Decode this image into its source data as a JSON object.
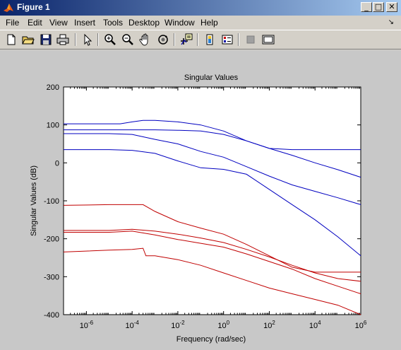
{
  "window": {
    "title": "Figure 1",
    "buttons": {
      "minimize": "_",
      "maximize": "□",
      "close": "✕"
    }
  },
  "menu": [
    {
      "label": "File"
    },
    {
      "label": "Edit"
    },
    {
      "label": "View"
    },
    {
      "label": "Insert"
    },
    {
      "label": "Tools"
    },
    {
      "label": "Desktop"
    },
    {
      "label": "Window"
    },
    {
      "label": "Help"
    }
  ],
  "menu_arrow": "↘",
  "toolbar": [
    {
      "icon": "new-figure-icon"
    },
    {
      "icon": "open-folder-icon"
    },
    {
      "icon": "save-icon"
    },
    {
      "icon": "print-icon"
    },
    {
      "icon": "pointer-arrow-icon"
    },
    {
      "icon": "zoom-in-icon"
    },
    {
      "icon": "zoom-out-icon"
    },
    {
      "icon": "pan-hand-icon"
    },
    {
      "icon": "rotate-3d-icon"
    },
    {
      "icon": "data-cursor-icon"
    },
    {
      "icon": "colorbar-icon"
    },
    {
      "icon": "legend-icon"
    },
    {
      "icon": "hide-plot-tools-icon"
    },
    {
      "icon": "show-plot-tools-icon"
    }
  ],
  "chart_data": {
    "type": "line",
    "title": "Singular Values",
    "xlabel": "Frequency (rad/sec)",
    "ylabel": "Singular Values (dB)",
    "xscale": "log",
    "xlim": [
      1e-07,
      1000000.0
    ],
    "ylim": [
      -400,
      200
    ],
    "xticks": [
      {
        "base": "10",
        "exp": "-6"
      },
      {
        "base": "10",
        "exp": "-4"
      },
      {
        "base": "10",
        "exp": "-2"
      },
      {
        "base": "10",
        "exp": "0"
      },
      {
        "base": "10",
        "exp": "2"
      },
      {
        "base": "10",
        "exp": "4"
      },
      {
        "base": "10",
        "exp": "6"
      }
    ],
    "xtick_values": [
      1e-06,
      0.0001,
      0.01,
      1,
      100,
      10000,
      1000000
    ],
    "yticks": [
      "200",
      "100",
      "0",
      "-100",
      "-200",
      "-300",
      "-400"
    ],
    "ytick_values": [
      200,
      100,
      0,
      -100,
      -200,
      -300,
      -400
    ],
    "series": [
      {
        "color": "#0000c0",
        "x": [
          1e-07,
          1e-05,
          3e-05,
          0.0001,
          0.0003,
          0.001,
          0.01,
          0.1,
          1,
          10,
          100,
          1000.0,
          10000.0,
          100000.0,
          1000000.0
        ],
        "y": [
          103,
          103,
          103,
          108,
          112,
          112,
          108,
          100,
          84,
          58,
          38,
          35,
          35,
          35,
          35
        ]
      },
      {
        "color": "#0000c0",
        "x": [
          1e-07,
          1e-05,
          0.0001,
          0.001,
          0.01,
          0.1,
          1,
          10,
          100,
          1000.0,
          10000.0,
          100000.0,
          1000000.0
        ],
        "y": [
          87,
          87,
          87,
          87,
          86,
          84,
          75,
          58,
          38,
          20,
          0,
          -18,
          -38
        ]
      },
      {
        "color": "#0000c0",
        "x": [
          1e-07,
          1e-05,
          0.0001,
          0.001,
          0.01,
          0.1,
          1,
          10,
          100,
          1000.0,
          10000.0,
          100000.0,
          1000000.0
        ],
        "y": [
          77,
          77,
          75,
          62,
          50,
          30,
          15,
          -10,
          -35,
          -58,
          -75,
          -92,
          -110
        ]
      },
      {
        "color": "#0000c0",
        "x": [
          1e-07,
          1e-05,
          0.0001,
          0.001,
          0.01,
          0.1,
          1,
          10,
          100,
          1000.0,
          10000.0,
          100000.0,
          1000000.0
        ],
        "y": [
          35,
          35,
          33,
          25,
          5,
          -13,
          -17,
          -30,
          -70,
          -110,
          -150,
          -195,
          -245
        ]
      },
      {
        "color": "#c00000",
        "x": [
          1e-07,
          1e-05,
          0.0001,
          0.0003,
          0.001,
          0.01,
          0.1,
          1,
          10,
          100,
          1000.0,
          10000.0,
          100000.0,
          1000000.0
        ],
        "y": [
          -112,
          -110,
          -110,
          -110,
          -128,
          -155,
          -172,
          -188,
          -215,
          -245,
          -275,
          -288,
          -288,
          -288
        ]
      },
      {
        "color": "#c00000",
        "x": [
          1e-07,
          1e-05,
          0.0001,
          0.001,
          0.01,
          0.1,
          1,
          10,
          100,
          1000.0,
          10000.0,
          100000.0,
          1000000.0
        ],
        "y": [
          -178,
          -178,
          -175,
          -180,
          -188,
          -198,
          -210,
          -228,
          -248,
          -270,
          -290,
          -305,
          -312
        ]
      },
      {
        "color": "#c00000",
        "x": [
          1e-07,
          1e-05,
          0.0001,
          0.001,
          0.01,
          0.1,
          1,
          10,
          100,
          1000.0,
          10000.0,
          100000.0,
          1000000.0
        ],
        "y": [
          -183,
          -183,
          -180,
          -190,
          -202,
          -212,
          -222,
          -240,
          -260,
          -280,
          -305,
          -325,
          -345
        ]
      },
      {
        "color": "#c00000",
        "x": [
          1e-07,
          1e-05,
          0.0001,
          0.0003,
          0.0004,
          0.001,
          0.01,
          0.1,
          1,
          10,
          100,
          1000.0,
          10000.0,
          100000.0,
          1000000.0
        ],
        "y": [
          -235,
          -230,
          -228,
          -225,
          -245,
          -245,
          -255,
          -270,
          -290,
          -310,
          -330,
          -345,
          -360,
          -375,
          -400
        ]
      }
    ]
  }
}
